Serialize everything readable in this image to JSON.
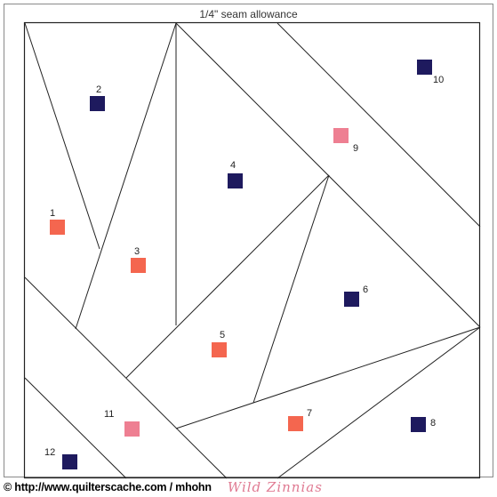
{
  "seam_label": "1/4\" seam allowance",
  "footer": {
    "copyright": "© http://www.quilterscache.com / mhohn",
    "brand": "Wild Zinnias"
  },
  "colors": {
    "navy": "#1e1a5e",
    "coral": "#f4664f",
    "pink": "#ee7f92",
    "line": "#222222",
    "border": "#8a8a8a"
  },
  "pieces": [
    {
      "label": "1",
      "color": "coral"
    },
    {
      "label": "2",
      "color": "navy"
    },
    {
      "label": "3",
      "color": "coral"
    },
    {
      "label": "4",
      "color": "navy"
    },
    {
      "label": "5",
      "color": "coral"
    },
    {
      "label": "6",
      "color": "navy"
    },
    {
      "label": "7",
      "color": "coral"
    },
    {
      "label": "8",
      "color": "navy"
    },
    {
      "label": "9",
      "color": "pink"
    },
    {
      "label": "10",
      "color": "navy"
    },
    {
      "label": "11",
      "color": "pink"
    },
    {
      "label": "12",
      "color": "navy"
    }
  ]
}
